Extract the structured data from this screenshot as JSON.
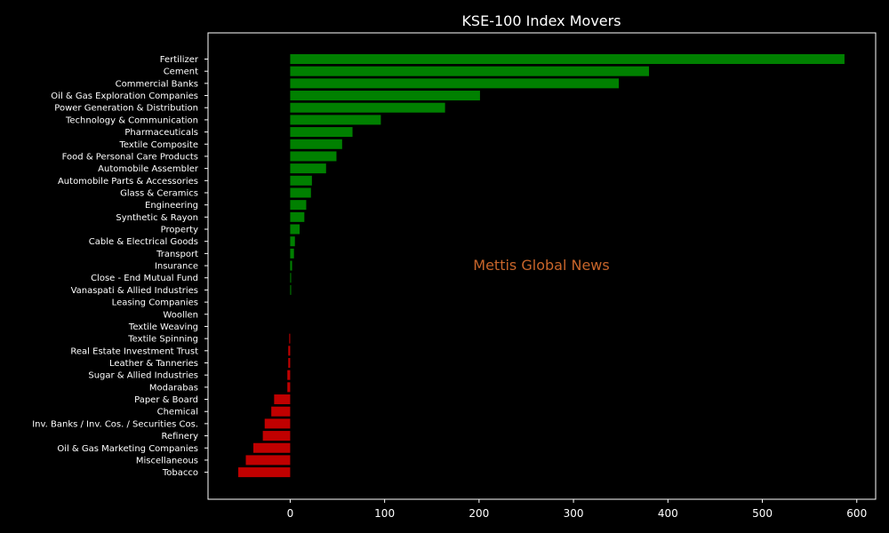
{
  "chart_data": {
    "type": "bar",
    "orientation": "horizontal",
    "title": "KSE-100 Index Movers",
    "watermark": "Mettis Global News",
    "xlabel": "",
    "ylabel": "",
    "xlim": [
      -87,
      620
    ],
    "xticks": [
      0,
      100,
      200,
      300,
      400,
      500,
      600
    ],
    "grid": false,
    "positive_color": "#008000",
    "negative_color": "#c00000",
    "background": "#000000",
    "text_color": "#ffffff",
    "watermark_color": "#c8652a",
    "categories": [
      "Fertilizer",
      "Cement",
      "Commercial Banks",
      "Oil & Gas Exploration Companies",
      "Power Generation & Distribution",
      "Technology & Communication",
      "Pharmaceuticals",
      "Textile Composite",
      "Food & Personal Care Products",
      "Automobile Assembler",
      "Automobile Parts & Accessories",
      "Glass & Ceramics",
      "Engineering",
      "Synthetic & Rayon",
      "Property",
      "Cable & Electrical Goods",
      "Transport",
      "Insurance",
      "Close - End Mutual Fund",
      "Vanaspati & Allied Industries",
      "Leasing Companies",
      "Woollen",
      "Textile Weaving",
      "Textile Spinning",
      "Real Estate Investment Trust",
      "Leather & Tanneries",
      "Sugar & Allied Industries",
      "Modarabas",
      "Paper & Board",
      "Chemical",
      "Inv. Banks / Inv. Cos. / Securities Cos.",
      "Refinery",
      "Oil & Gas Marketing Companies",
      "Miscellaneous",
      "Tobacco"
    ],
    "values": [
      587,
      380,
      348,
      201,
      164,
      96,
      66,
      55,
      49,
      38,
      23,
      22,
      17,
      15,
      10,
      5,
      4,
      2,
      1,
      1,
      0,
      0,
      0,
      -1,
      -2,
      -2,
      -3,
      -3,
      -17,
      -20,
      -27,
      -29,
      -39,
      -47,
      -55
    ]
  }
}
